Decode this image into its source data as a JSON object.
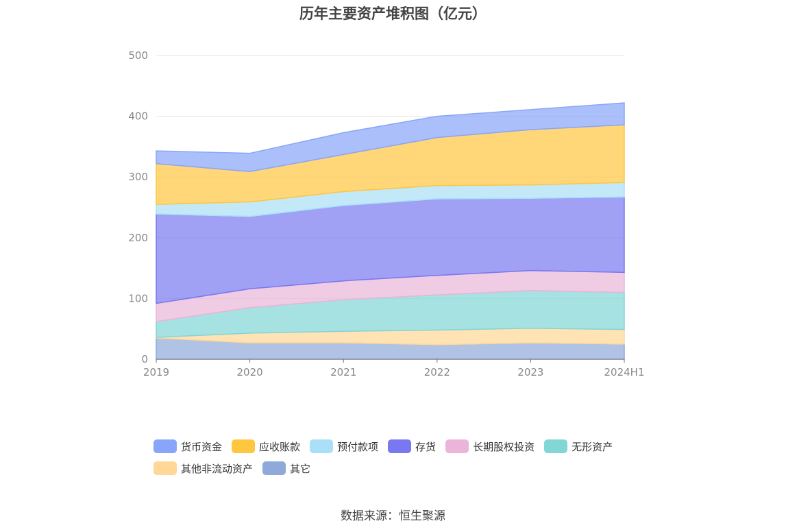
{
  "source_label": "数据来源：恒生聚源",
  "chart_data": {
    "type": "area",
    "stacked": true,
    "title": "历年主要资产堆积图（亿元）",
    "xlabel": "",
    "ylabel": "",
    "categories": [
      "2019",
      "2020",
      "2021",
      "2022",
      "2023",
      "2024H1"
    ],
    "ylim": [
      0,
      500
    ],
    "yticks": [
      0,
      100,
      200,
      300,
      400,
      500
    ],
    "grid": true,
    "legend_position": "bottom",
    "series": [
      {
        "name": "其它",
        "color": "#8fa9da",
        "values": [
          35,
          27,
          27,
          24,
          27,
          25
        ]
      },
      {
        "name": "其他非流动资产",
        "color": "#ffd796",
        "values": [
          1,
          16,
          19,
          24,
          24,
          24
        ]
      },
      {
        "name": "无形资产",
        "color": "#82d6d6",
        "values": [
          26,
          42,
          52,
          58,
          62,
          61
        ]
      },
      {
        "name": "长期股权投资",
        "color": "#eab5d8",
        "values": [
          30,
          31,
          31,
          32,
          33,
          33
        ]
      },
      {
        "name": "存货",
        "color": "#7878f0",
        "values": [
          147,
          119,
          124,
          126,
          119,
          124
        ]
      },
      {
        "name": "预付款项",
        "color": "#a9e0f7",
        "values": [
          16,
          24,
          23,
          22,
          22,
          24
        ]
      },
      {
        "name": "应收账款",
        "color": "#ffc640",
        "values": [
          67,
          50,
          61,
          79,
          91,
          95
        ]
      },
      {
        "name": "货币资金",
        "color": "#88a5fa",
        "values": [
          21,
          30,
          36,
          35,
          33,
          36
        ]
      }
    ],
    "legend_order": [
      "货币资金",
      "应收账款",
      "预付款项",
      "存货",
      "长期股权投资",
      "无形资产",
      "其他非流动资产",
      "其它"
    ]
  }
}
